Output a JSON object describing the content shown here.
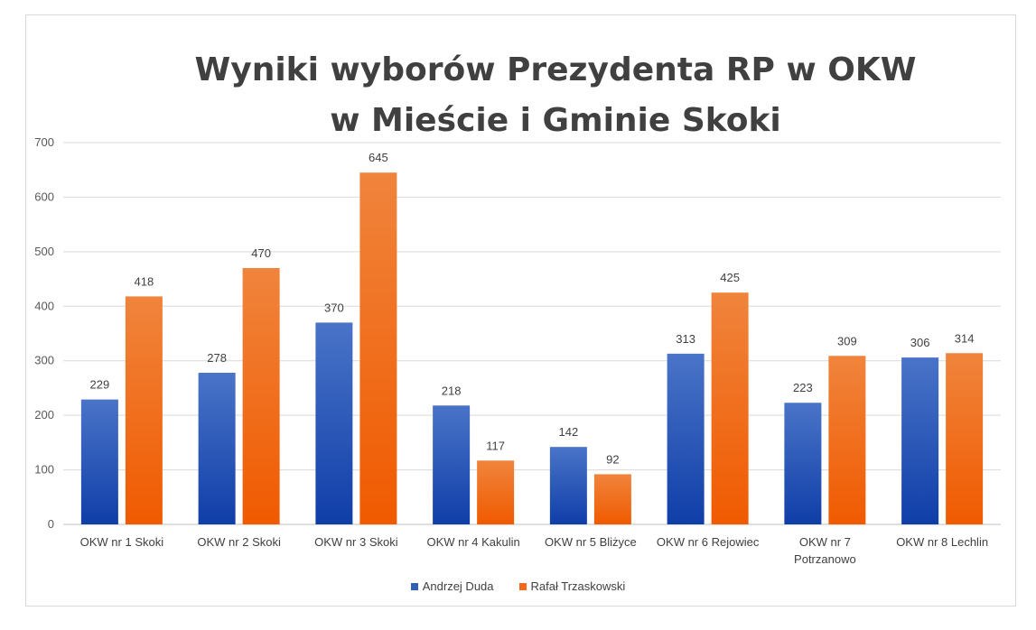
{
  "chart_data": {
    "type": "bar",
    "title": "Wyniki wyborów Prezydenta RP w OKW\nw Mieście i Gminie Skoki",
    "categories": [
      "OKW nr 1 Skoki",
      "OKW nr 2 Skoki",
      "OKW nr 3 Skoki",
      "OKW nr 4 Kakulin",
      "OKW nr 5 Bliżyce",
      "OKW nr 6 Rejowiec",
      "OKW nr 7 Potrzanowo",
      "OKW nr 8 Lechlin"
    ],
    "series": [
      {
        "name": "Andrzej Duda",
        "values": [
          229,
          278,
          370,
          218,
          142,
          313,
          223,
          306
        ],
        "color": "#2e5fb3"
      },
      {
        "name": "Rafał Trzaskowski",
        "values": [
          418,
          470,
          645,
          117,
          92,
          425,
          309,
          314
        ],
        "color": "#f06a1e"
      }
    ],
    "ylim": [
      0,
      700
    ],
    "yticks": [
      0,
      100,
      200,
      300,
      400,
      500,
      600,
      700
    ],
    "grid": true,
    "legend": "bottom",
    "data_labels": true
  }
}
